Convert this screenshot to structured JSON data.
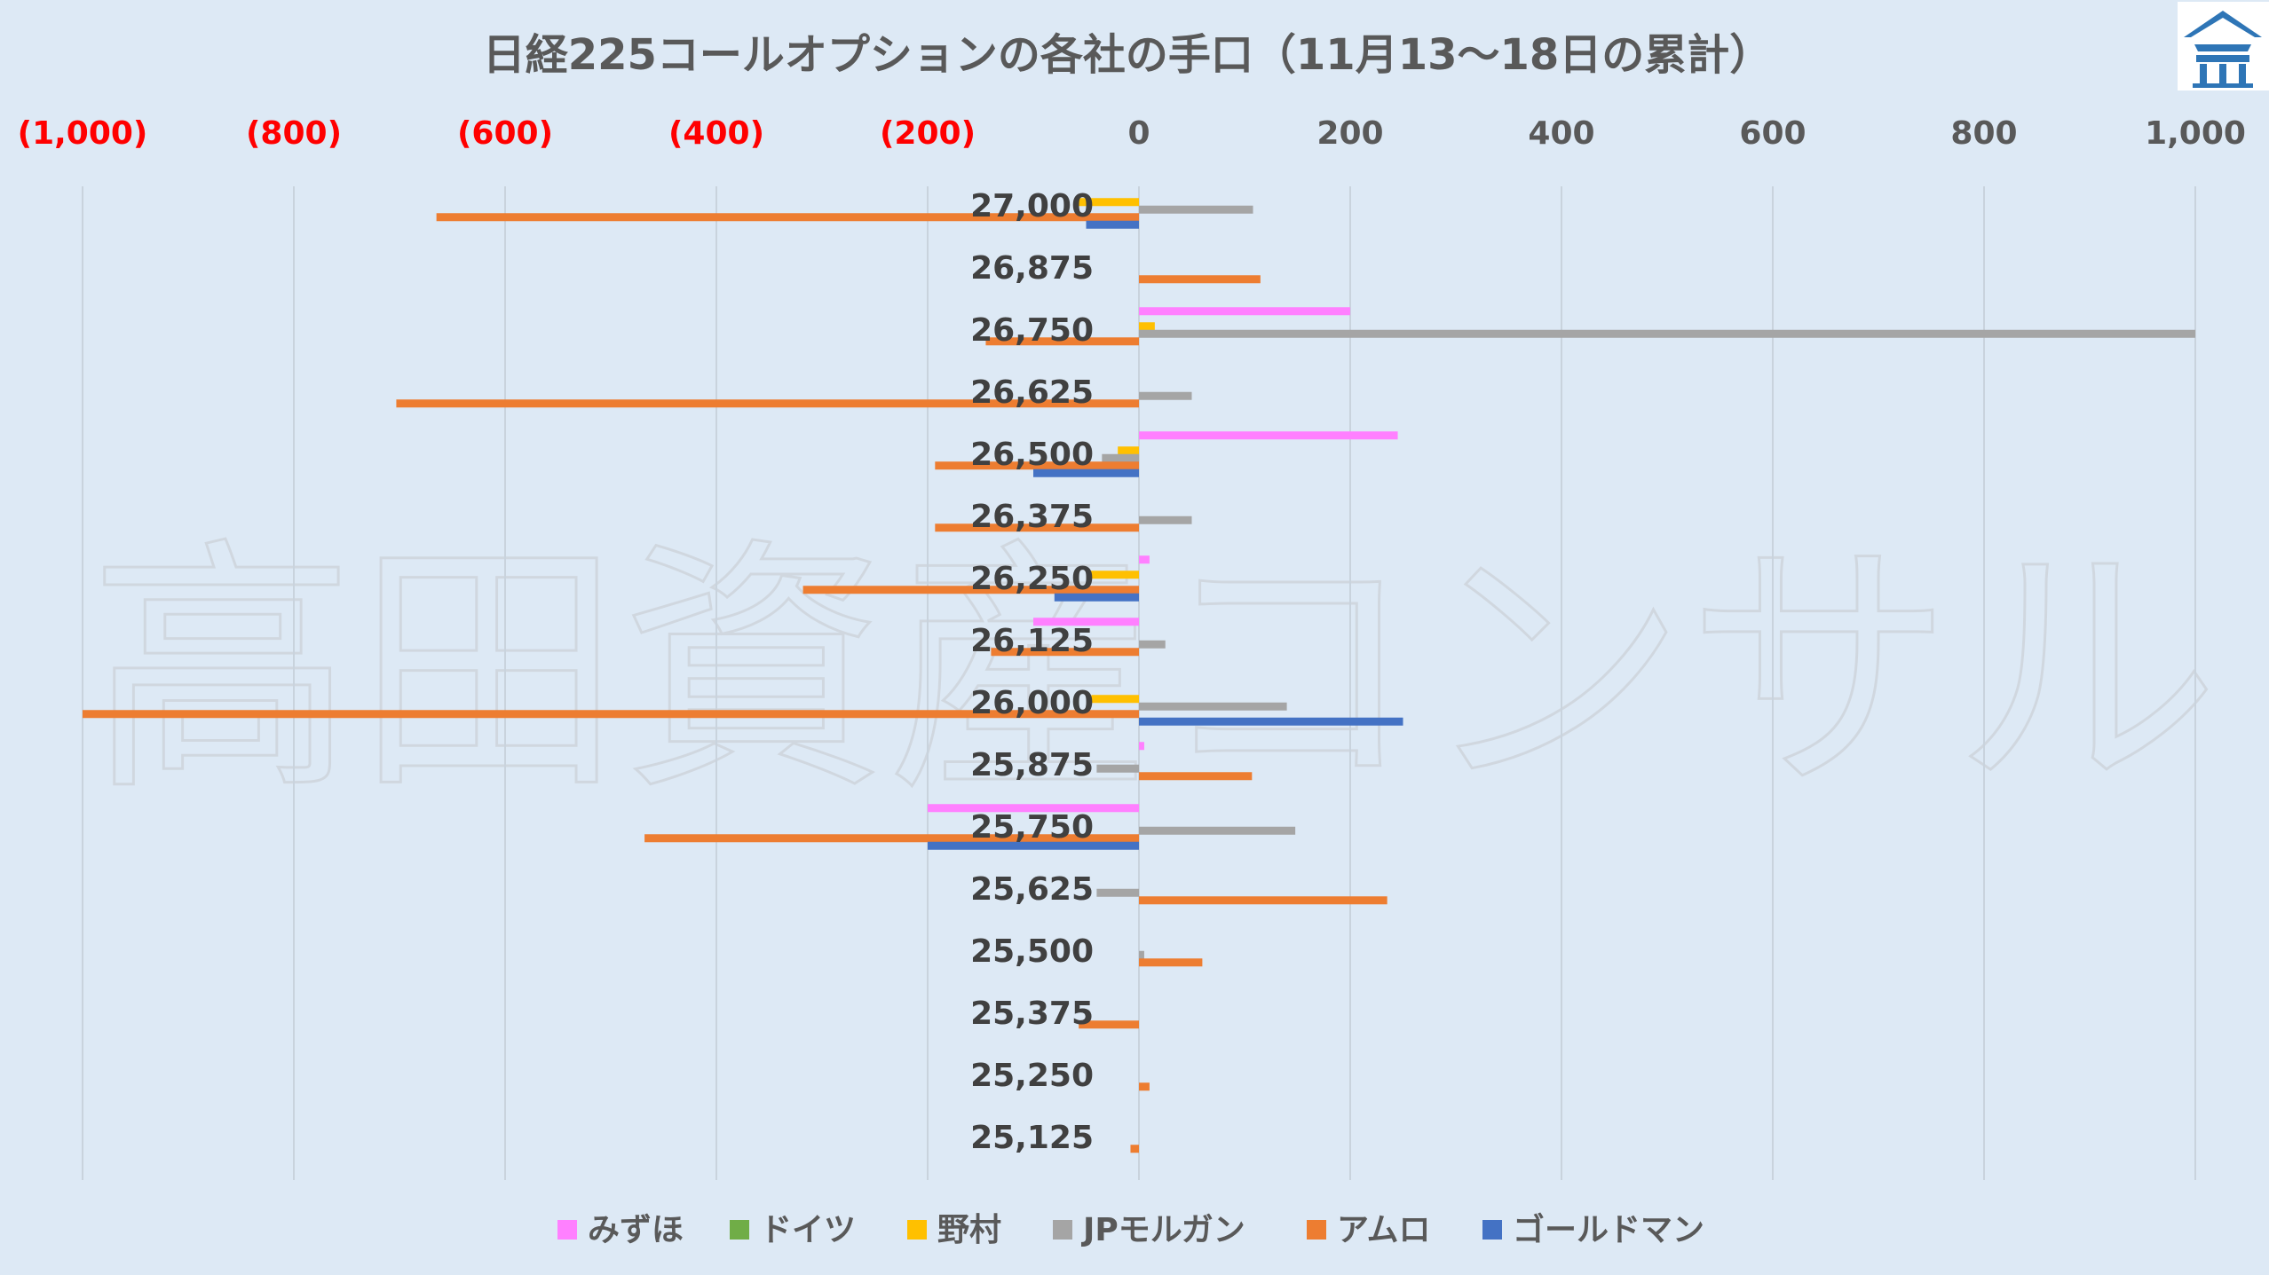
{
  "chart_data": {
    "type": "bar",
    "orientation": "horizontal",
    "title": "日経225コールオプションの各社の手口（11月13〜18日の累計）",
    "watermark": "高田資産コンサル",
    "xlim": [
      -1000,
      1000
    ],
    "x_ticks": [
      {
        "value": -1000,
        "label": "(1,000)"
      },
      {
        "value": -800,
        "label": "(800)"
      },
      {
        "value": -600,
        "label": "(600)"
      },
      {
        "value": -400,
        "label": "(400)"
      },
      {
        "value": -200,
        "label": "(200)"
      },
      {
        "value": 0,
        "label": "0"
      },
      {
        "value": 200,
        "label": "200"
      },
      {
        "value": 400,
        "label": "400"
      },
      {
        "value": 600,
        "label": "600"
      },
      {
        "value": 800,
        "label": "800"
      },
      {
        "value": 1000,
        "label": "1,000"
      }
    ],
    "negative_tick_color": "#ff0000",
    "positive_tick_color": "#595959",
    "grid": true,
    "legend_position": "bottom",
    "categories": [
      "27,000",
      "26,875",
      "26,750",
      "26,625",
      "26,500",
      "26,375",
      "26,250",
      "26,125",
      "26,000",
      "25,875",
      "25,750",
      "25,625",
      "25,500",
      "25,375",
      "25,250",
      "25,125"
    ],
    "series": [
      {
        "name": "みずほ",
        "color": "#ff80ff",
        "values": [
          0,
          0,
          200,
          0,
          245,
          0,
          10,
          -100,
          0,
          5,
          -200,
          0,
          0,
          0,
          0,
          0
        ]
      },
      {
        "name": "ドイツ",
        "color": "#70ad47",
        "values": [
          0,
          0,
          0,
          0,
          0,
          0,
          0,
          0,
          0,
          0,
          0,
          0,
          0,
          0,
          0,
          0
        ]
      },
      {
        "name": "野村",
        "color": "#ffc000",
        "values": [
          -60,
          0,
          15,
          0,
          -20,
          0,
          -50,
          0,
          -45,
          0,
          0,
          0,
          0,
          0,
          0,
          0
        ]
      },
      {
        "name": "JPモルガン",
        "color": "#a5a5a5",
        "values": [
          108,
          0,
          1000,
          50,
          -35,
          50,
          0,
          25,
          140,
          -40,
          148,
          -40,
          5,
          0,
          0,
          0
        ]
      },
      {
        "name": "アムロ",
        "color": "#ed7d31",
        "values": [
          -665,
          115,
          -145,
          -703,
          -193,
          -193,
          -318,
          -140,
          -1000,
          107,
          -468,
          235,
          60,
          -57,
          10,
          -8
        ]
      },
      {
        "name": "ゴールドマン",
        "color": "#4472c4",
        "values": [
          -50,
          0,
          0,
          0,
          -100,
          0,
          -80,
          0,
          250,
          0,
          -200,
          0,
          0,
          0,
          0,
          0
        ]
      }
    ]
  }
}
